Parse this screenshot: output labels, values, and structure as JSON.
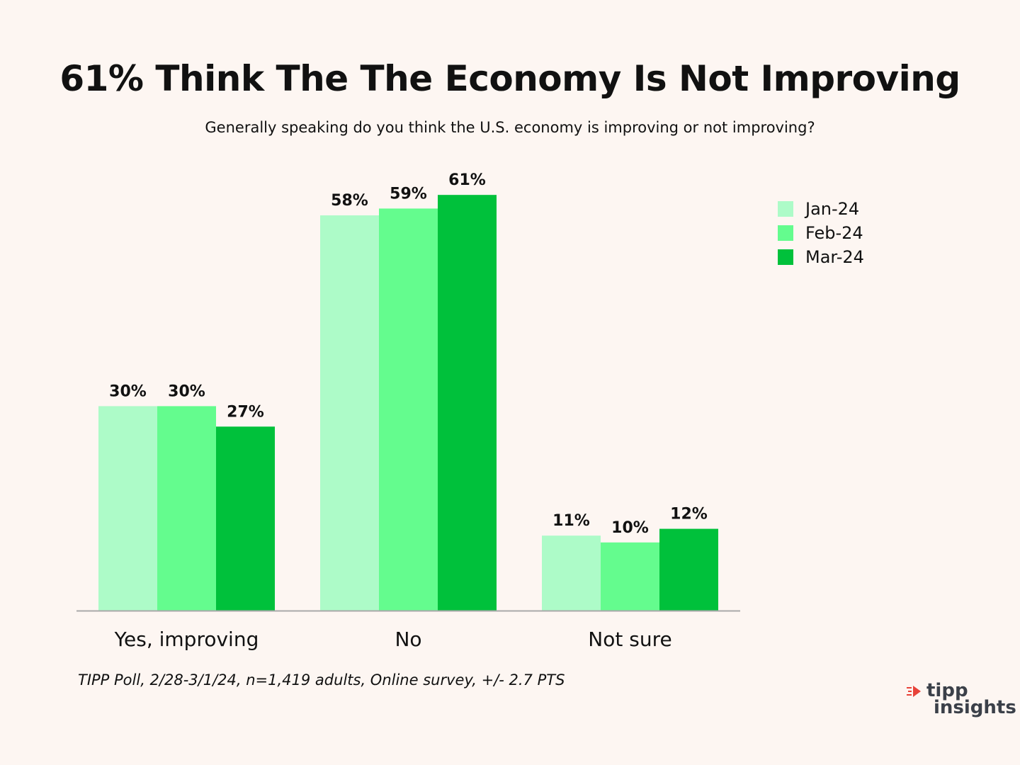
{
  "header": {
    "title": "61% Think The The Economy Is Not Improving",
    "subtitle": "Generally speaking do you think the U.S. economy is improving or not improving?"
  },
  "chart_data": {
    "type": "bar",
    "categories": [
      "Yes, improving",
      "No",
      "Not sure"
    ],
    "series": [
      {
        "name": "Jan-24",
        "values": [
          30,
          58,
          11
        ],
        "labels": [
          "30%",
          "58%",
          "11%"
        ],
        "color": "#adfbc8"
      },
      {
        "name": "Feb-24",
        "values": [
          30,
          59,
          10
        ],
        "labels": [
          "30%",
          "59%",
          "10%"
        ],
        "color": "#64fc8e"
      },
      {
        "name": "Mar-24",
        "values": [
          27,
          61,
          12
        ],
        "labels": [
          "27%",
          "61%",
          "12%"
        ],
        "color": "#00c13b"
      }
    ],
    "ylim": [
      0,
      61
    ],
    "grid": false,
    "legend_position": "top-right"
  },
  "legend": {
    "items": [
      {
        "label": "Jan-24",
        "color": "#adfbc8"
      },
      {
        "label": "Feb-24",
        "color": "#64fc8e"
      },
      {
        "label": "Mar-24",
        "color": "#00c13b"
      }
    ]
  },
  "footer": {
    "source": "TIPP Poll, 2/28-3/1/24, n=1,419 adults, Online survey, +/- 2.7 PTS"
  },
  "logo": {
    "word1": "tipp",
    "word2": "insights",
    "accent_color": "#e8433a",
    "text_color": "#3b4049"
  },
  "colors": {
    "background": "#fdf6f2",
    "axis": "#a9a9a9",
    "text": "#111111"
  }
}
